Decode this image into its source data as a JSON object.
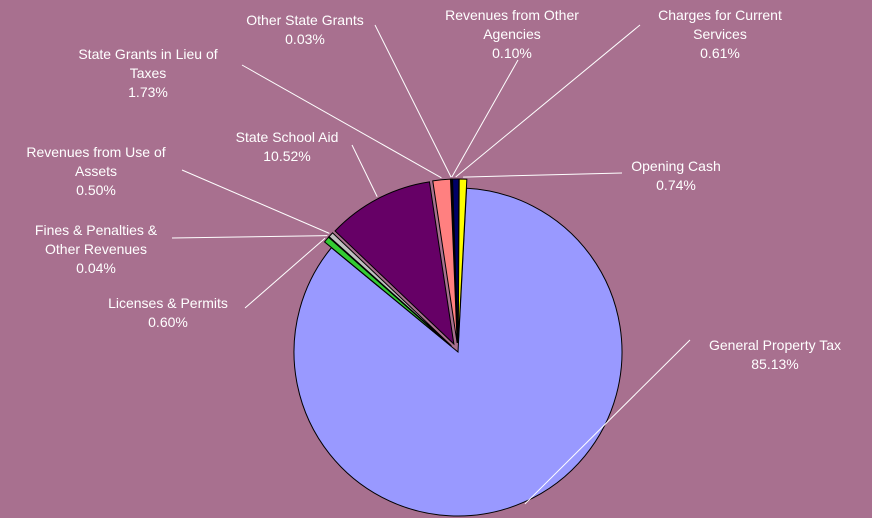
{
  "chart_data": {
    "type": "pie",
    "categories": [
      "General Property Tax",
      "Licenses & Permits",
      "Fines & Penalties & Other Revenues",
      "Revenues from Use of Assets",
      "State School Aid",
      "State Grants in Lieu of Taxes",
      "Other State Grants",
      "Revenues from Other Agencies",
      "Charges for Current Services",
      "Opening Cash"
    ],
    "values": [
      85.13,
      0.6,
      0.04,
      0.5,
      10.52,
      1.73,
      0.03,
      0.1,
      0.61,
      0.74
    ],
    "value_labels": [
      "85.13%",
      "0.60%",
      "0.04%",
      "0.50%",
      "10.52%",
      "1.73%",
      "0.03%",
      "0.10%",
      "0.61%",
      "0.74%"
    ],
    "colors": [
      "#9999ff",
      "#33cc33",
      "#ffffcc",
      "#c0c0c0",
      "#660066",
      "#ff8080",
      "#ffffff",
      "#000080",
      "#000066",
      "#ffff00"
    ]
  }
}
